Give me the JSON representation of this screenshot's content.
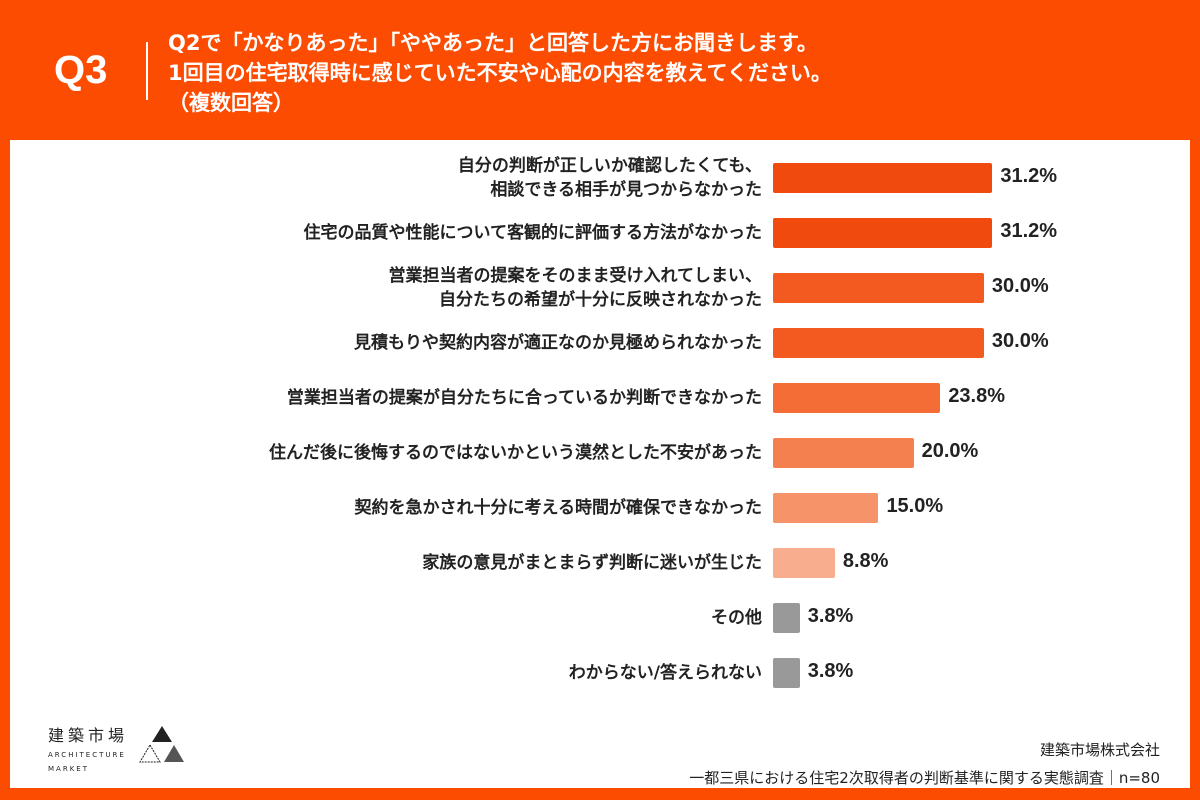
{
  "header": {
    "q_number": "Q3",
    "title_lines": [
      "Q2で「かなりあった」「ややあった」と回答した方にお聞きします。",
      "1回目の住宅取得時に感じていた不安や心配の内容を教えてください。",
      "（複数回答）"
    ]
  },
  "chart_data": {
    "type": "bar",
    "orientation": "horizontal",
    "unit": "%",
    "xlim": [
      0,
      100
    ],
    "categories": [
      [
        "自分の判断が正しいか確認したくても、",
        "相談できる相手が見つからなかった"
      ],
      [
        "住宅の品質や性能について客観的に評価する方法がなかった"
      ],
      [
        "営業担当者の提案をそのまま受け入れてしまい、",
        "自分たちの希望が十分に反映されなかった"
      ],
      [
        "見積もりや契約内容が適正なのか見極められなかった"
      ],
      [
        "営業担当者の提案が自分たちに合っているか判断できなかった"
      ],
      [
        "住んだ後に後悔するのではないかという漠然とした不安があった"
      ],
      [
        "契約を急かされ十分に考える時間が確保できなかった"
      ],
      [
        "家族の意見がまとまらず判断に迷いが生じた"
      ],
      [
        "その他"
      ],
      [
        "わからない/答えられない"
      ]
    ],
    "values": [
      31.2,
      31.2,
      30.0,
      30.0,
      23.8,
      20.0,
      15.0,
      8.8,
      3.8,
      3.8
    ],
    "labels": [
      "31.2%",
      "31.2%",
      "30.0%",
      "30.0%",
      "23.8%",
      "20.0%",
      "15.0%",
      "8.8%",
      "3.8%",
      "3.8%"
    ],
    "colors": [
      "#f04a0e",
      "#f04a0e",
      "#f25a20",
      "#f25a20",
      "#f46d36",
      "#f5804f",
      "#f69368",
      "#f8ad8e",
      "#999999",
      "#999999"
    ]
  },
  "logo": {
    "jp": "建築市場",
    "en1": "ARCHITECTURE",
    "en2": "MARKET"
  },
  "footer": {
    "company": "建築市場株式会社",
    "survey": "一都三県における住宅2次取得者の判断基準に関する実態調査｜n=80"
  }
}
